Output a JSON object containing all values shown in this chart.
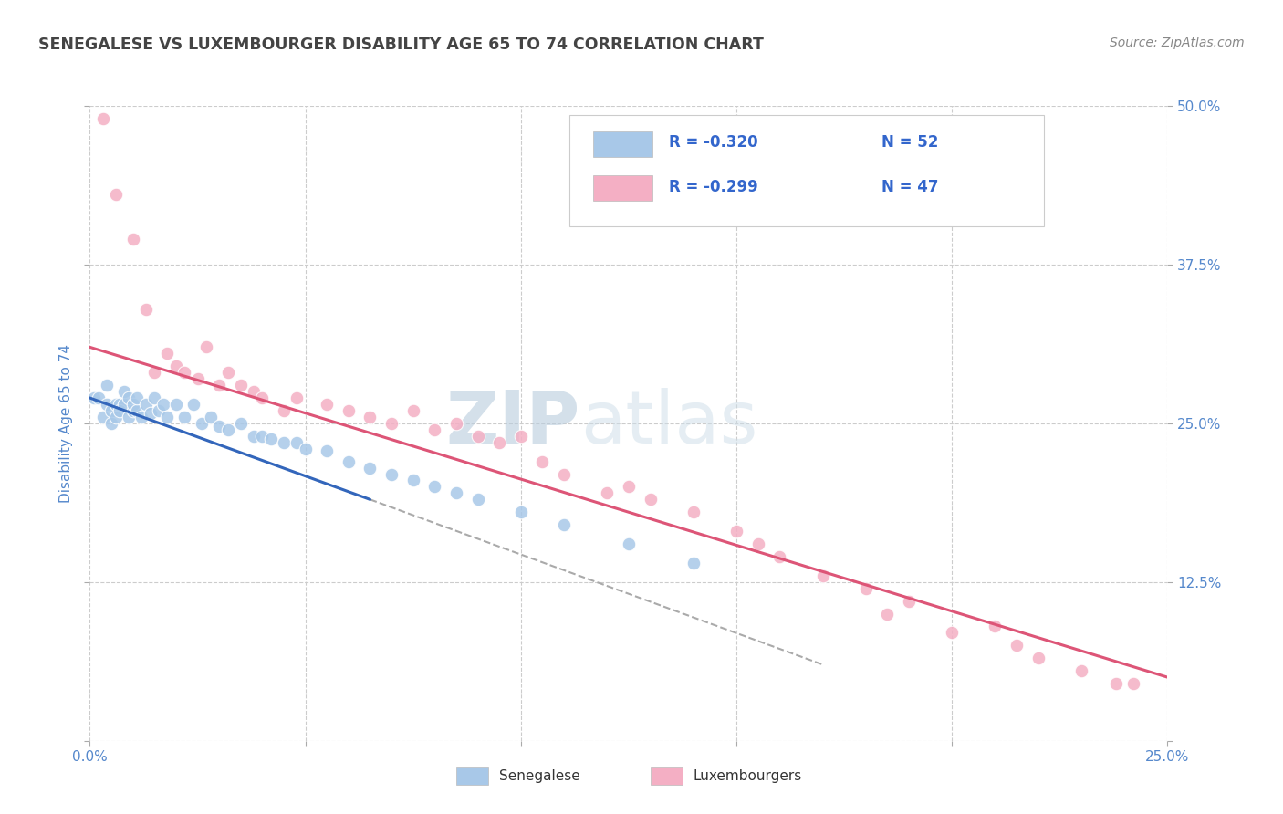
{
  "title": "SENEGALESE VS LUXEMBOURGER DISABILITY AGE 65 TO 74 CORRELATION CHART",
  "source": "Source: ZipAtlas.com",
  "ylabel": "Disability Age 65 to 74",
  "xlim": [
    0.0,
    0.25
  ],
  "ylim": [
    0.0,
    0.5
  ],
  "x_ticks": [
    0.0,
    0.05,
    0.1,
    0.15,
    0.2,
    0.25
  ],
  "x_tick_labels": [
    "0.0%",
    "",
    "",
    "",
    "",
    "25.0%"
  ],
  "y_ticks": [
    0.0,
    0.125,
    0.25,
    0.375,
    0.5
  ],
  "y_right_labels": [
    "",
    "12.5%",
    "25.0%",
    "37.5%",
    "50.0%"
  ],
  "legend_r1": "R = -0.320",
  "legend_n1": "N = 52",
  "legend_r2": "R = -0.299",
  "legend_n2": "N = 47",
  "watermark_zip": "ZIP",
  "watermark_atlas": "atlas",
  "senegalese_color": "#a8c8e8",
  "luxembourger_color": "#f4afc4",
  "senegalese_line_color": "#3366bb",
  "luxembourger_line_color": "#dd5577",
  "trend_line_color": "#aaaaaa",
  "background_color": "#ffffff",
  "grid_color": "#cccccc",
  "title_color": "#444444",
  "axis_label_color": "#5588cc",
  "legend_text_color": "#3366cc",
  "sen_x": [
    0.001,
    0.002,
    0.003,
    0.004,
    0.004,
    0.005,
    0.005,
    0.006,
    0.006,
    0.007,
    0.007,
    0.008,
    0.008,
    0.009,
    0.009,
    0.01,
    0.01,
    0.011,
    0.011,
    0.012,
    0.013,
    0.014,
    0.015,
    0.016,
    0.017,
    0.018,
    0.02,
    0.022,
    0.024,
    0.026,
    0.028,
    0.03,
    0.032,
    0.035,
    0.038,
    0.04,
    0.042,
    0.045,
    0.048,
    0.05,
    0.055,
    0.06,
    0.065,
    0.07,
    0.075,
    0.08,
    0.085,
    0.09,
    0.1,
    0.11,
    0.125,
    0.14
  ],
  "sen_y": [
    0.27,
    0.27,
    0.255,
    0.265,
    0.28,
    0.26,
    0.25,
    0.265,
    0.255,
    0.265,
    0.26,
    0.265,
    0.275,
    0.255,
    0.27,
    0.26,
    0.265,
    0.26,
    0.27,
    0.255,
    0.265,
    0.258,
    0.27,
    0.26,
    0.265,
    0.255,
    0.265,
    0.255,
    0.265,
    0.25,
    0.255,
    0.248,
    0.245,
    0.25,
    0.24,
    0.24,
    0.238,
    0.235,
    0.235,
    0.23,
    0.228,
    0.22,
    0.215,
    0.21,
    0.205,
    0.2,
    0.195,
    0.19,
    0.18,
    0.17,
    0.155,
    0.14
  ],
  "lux_x": [
    0.003,
    0.006,
    0.01,
    0.013,
    0.015,
    0.018,
    0.02,
    0.022,
    0.025,
    0.027,
    0.03,
    0.032,
    0.035,
    0.038,
    0.04,
    0.045,
    0.048,
    0.055,
    0.06,
    0.065,
    0.07,
    0.075,
    0.08,
    0.085,
    0.09,
    0.095,
    0.1,
    0.105,
    0.11,
    0.12,
    0.125,
    0.13,
    0.14,
    0.15,
    0.155,
    0.16,
    0.17,
    0.18,
    0.185,
    0.19,
    0.2,
    0.21,
    0.215,
    0.22,
    0.23,
    0.238,
    0.242
  ],
  "lux_y": [
    0.49,
    0.43,
    0.395,
    0.34,
    0.29,
    0.305,
    0.295,
    0.29,
    0.285,
    0.31,
    0.28,
    0.29,
    0.28,
    0.275,
    0.27,
    0.26,
    0.27,
    0.265,
    0.26,
    0.255,
    0.25,
    0.26,
    0.245,
    0.25,
    0.24,
    0.235,
    0.24,
    0.22,
    0.21,
    0.195,
    0.2,
    0.19,
    0.18,
    0.165,
    0.155,
    0.145,
    0.13,
    0.12,
    0.1,
    0.11,
    0.085,
    0.09,
    0.075,
    0.065,
    0.055,
    0.045,
    0.045
  ],
  "sen_line_x0": 0.0,
  "sen_line_x1": 0.065,
  "sen_line_y0": 0.27,
  "sen_line_y1": 0.19,
  "lux_line_x0": 0.0,
  "lux_line_x1": 0.25,
  "lux_line_y0": 0.31,
  "lux_line_y1": 0.05,
  "dash_line_x0": 0.065,
  "dash_line_x1": 0.17,
  "dash_line_y0": 0.19,
  "dash_line_y1": 0.06
}
